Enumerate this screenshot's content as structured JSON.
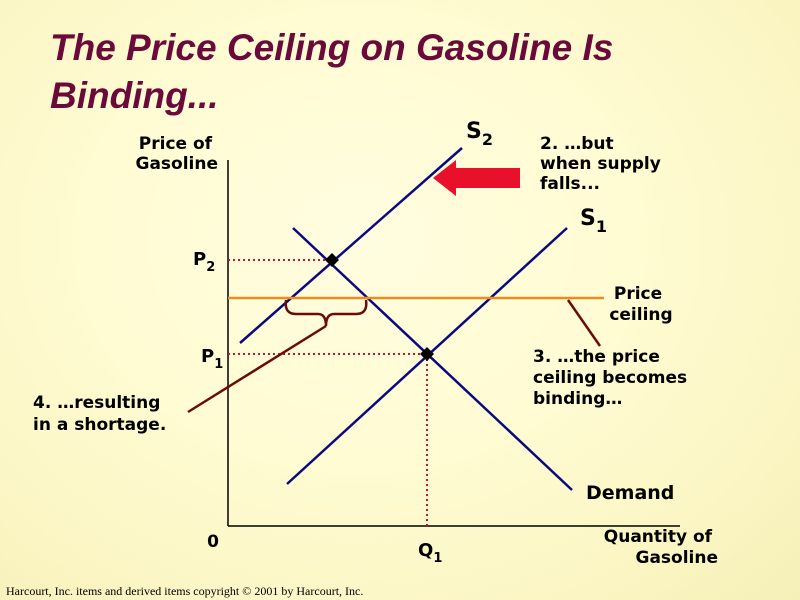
{
  "title": "The Price Ceiling on Gasoline Is Binding...",
  "axes": {
    "y_label": [
      "Price of",
      "Gasoline"
    ],
    "x_label": [
      "Quantity of",
      "Gasoline"
    ],
    "origin": "0",
    "p1": {
      "main": "P",
      "sub": "1"
    },
    "p2": {
      "main": "P",
      "sub": "2"
    },
    "q1": {
      "main": "Q",
      "sub": "1"
    }
  },
  "curves": {
    "s1": {
      "main": "S",
      "sub": "1"
    },
    "s2": {
      "main": "S",
      "sub": "2"
    },
    "demand": "Demand",
    "price_ceiling": [
      "Price",
      "ceiling"
    ]
  },
  "annotations": {
    "step2": [
      "2. …but",
      "when supply",
      "falls..."
    ],
    "step3": [
      "3. …the price",
      "ceiling becomes",
      "binding…"
    ],
    "step4": [
      "4. …resulting",
      "in a shortage."
    ]
  },
  "footer": "Harcourt, Inc. items and derived items copyright © 2001  by Harcourt, Inc.",
  "colors": {
    "title": "#6a0a3a",
    "curves": "#0a0a80",
    "ceiling": "#f08a1a",
    "dotted": "#cc1133",
    "arrow": "#e8102a",
    "pointer": "#6a0a0a"
  }
}
